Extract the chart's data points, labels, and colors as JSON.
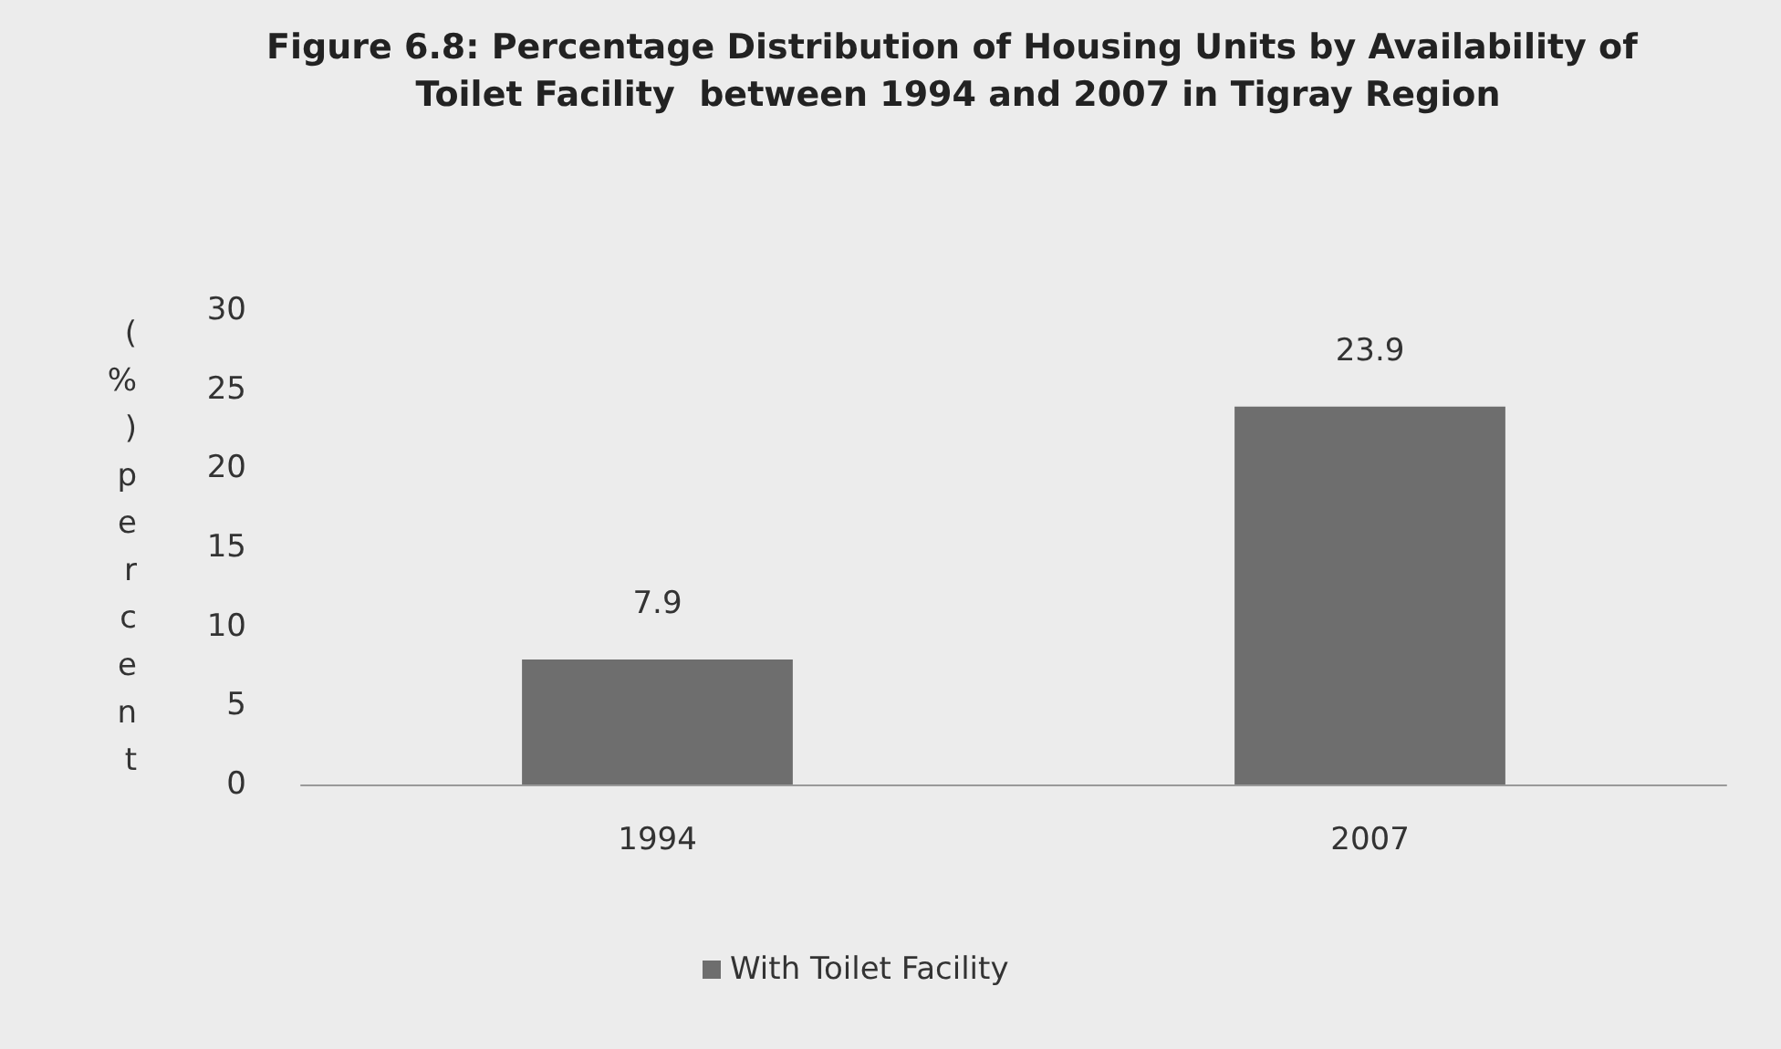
{
  "chart_data": {
    "type": "bar",
    "title": "Figure 6.8: Percentage Distribution of Housing Units by Availability of Toilet Facility  between 1994 and 2007 in Tigray Region",
    "ylabel": "(%) percent",
    "categories": [
      "1994",
      "2007"
    ],
    "series": [
      {
        "name": "With Toilet Facility",
        "color": "#6e6e6e",
        "values": [
          7.9,
          23.9
        ]
      }
    ],
    "ylim": [
      0,
      30
    ],
    "yticks": [
      0,
      5,
      10,
      15,
      20,
      25,
      30
    ],
    "grid": false,
    "legend": "bottom",
    "data_labels": true
  }
}
